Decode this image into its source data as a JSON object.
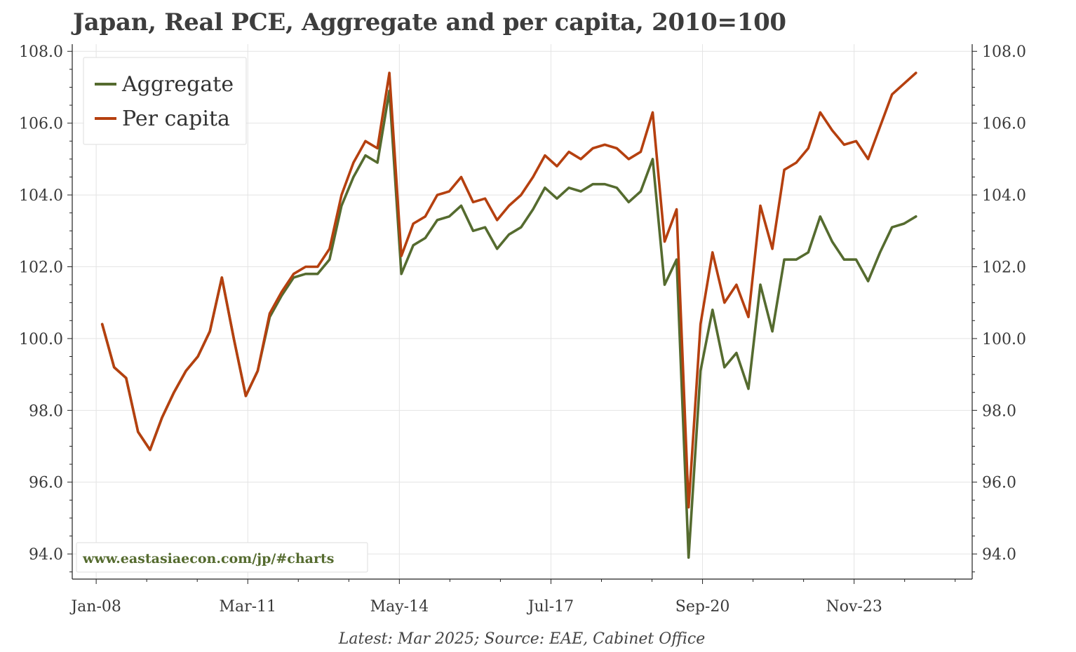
{
  "title": "Japan, Real PCE, Aggregate and per capita, 2010=100",
  "source": "Latest: Mar 2025; Source: EAE, Cabinet Office",
  "watermark": "www.eastasiaecon.com/jp/#charts",
  "colors": {
    "aggregate": "#556b2f",
    "per_capita": "#b5400f",
    "watermark": "#556b2f",
    "grid": "#e4e4e4",
    "axis": "#222222"
  },
  "chart_data": {
    "type": "line",
    "title": "Japan, Real PCE, Aggregate and per capita, 2010=100",
    "xlabel": "",
    "ylabel": "",
    "x_axis": "quarterly dates",
    "x_ticks": [
      "Jan-08",
      "Mar-11",
      "May-14",
      "Jul-17",
      "Sep-20",
      "Nov-23"
    ],
    "x_tick_dates": [
      "2008-01",
      "2011-03",
      "2014-05",
      "2017-07",
      "2020-09",
      "2023-11"
    ],
    "ylim": [
      93.3,
      108.2
    ],
    "y_ticks": [
      "94.0",
      "96.0",
      "98.0",
      "100.0",
      "102.0",
      "104.0",
      "106.0",
      "108.0"
    ],
    "y_tick_values": [
      94,
      96,
      98,
      100,
      102,
      104,
      106,
      108
    ],
    "secondary_y_axis": true,
    "grid": true,
    "legend": "top-left",
    "x": [
      "2008-Q1",
      "2008-Q2",
      "2008-Q3",
      "2008-Q4",
      "2009-Q1",
      "2009-Q2",
      "2009-Q3",
      "2009-Q4",
      "2010-Q1",
      "2010-Q2",
      "2010-Q3",
      "2010-Q4",
      "2011-Q1",
      "2011-Q2",
      "2011-Q3",
      "2011-Q4",
      "2012-Q1",
      "2012-Q2",
      "2012-Q3",
      "2012-Q4",
      "2013-Q1",
      "2013-Q2",
      "2013-Q3",
      "2013-Q4",
      "2014-Q1",
      "2014-Q2",
      "2014-Q3",
      "2014-Q4",
      "2015-Q1",
      "2015-Q2",
      "2015-Q3",
      "2015-Q4",
      "2016-Q1",
      "2016-Q2",
      "2016-Q3",
      "2016-Q4",
      "2017-Q1",
      "2017-Q2",
      "2017-Q3",
      "2017-Q4",
      "2018-Q1",
      "2018-Q2",
      "2018-Q3",
      "2018-Q4",
      "2019-Q1",
      "2019-Q2",
      "2019-Q3",
      "2019-Q4",
      "2020-Q1",
      "2020-Q2",
      "2020-Q3",
      "2020-Q4",
      "2021-Q1",
      "2021-Q2",
      "2021-Q3",
      "2021-Q4",
      "2022-Q1",
      "2022-Q2",
      "2022-Q3",
      "2022-Q4",
      "2023-Q1",
      "2023-Q2",
      "2023-Q3",
      "2023-Q4",
      "2024-Q1",
      "2024-Q2",
      "2024-Q3",
      "2024-Q4",
      "2025-Q1"
    ],
    "series": [
      {
        "name": "Aggregate",
        "color": "#556b2f",
        "values": [
          100.4,
          99.2,
          98.9,
          97.4,
          96.9,
          97.8,
          98.5,
          99.1,
          99.5,
          100.2,
          101.7,
          100.0,
          98.4,
          99.1,
          100.6,
          101.2,
          101.7,
          101.8,
          101.8,
          102.2,
          103.7,
          104.5,
          105.1,
          104.9,
          106.9,
          101.8,
          102.6,
          102.8,
          103.3,
          103.4,
          103.7,
          103.0,
          103.1,
          102.5,
          102.9,
          103.1,
          103.6,
          104.2,
          103.9,
          104.2,
          104.1,
          104.3,
          104.3,
          104.2,
          103.8,
          104.1,
          105.0,
          101.5,
          102.2,
          93.9,
          99.1,
          100.8,
          99.2,
          99.6,
          98.6,
          101.5,
          100.2,
          102.2,
          102.2,
          102.4,
          103.4,
          102.7,
          102.2,
          102.2,
          101.6,
          102.4,
          103.1,
          103.2,
          103.4
        ]
      },
      {
        "name": "Per capita",
        "color": "#b5400f",
        "values": [
          100.4,
          99.2,
          98.9,
          97.4,
          96.9,
          97.8,
          98.5,
          99.1,
          99.5,
          100.2,
          101.7,
          100.0,
          98.4,
          99.1,
          100.7,
          101.3,
          101.8,
          102.0,
          102.0,
          102.5,
          104.0,
          104.9,
          105.5,
          105.3,
          107.4,
          102.3,
          103.2,
          103.4,
          104.0,
          104.1,
          104.5,
          103.8,
          103.9,
          103.3,
          103.7,
          104.0,
          104.5,
          105.1,
          104.8,
          105.2,
          105.0,
          105.3,
          105.4,
          105.3,
          105.0,
          105.2,
          106.3,
          102.7,
          103.6,
          95.3,
          100.4,
          102.4,
          101.0,
          101.5,
          100.6,
          103.7,
          102.5,
          104.7,
          104.9,
          105.3,
          106.3,
          105.8,
          105.4,
          105.5,
          105.0,
          105.9,
          106.8,
          107.1,
          107.4
        ]
      }
    ]
  }
}
